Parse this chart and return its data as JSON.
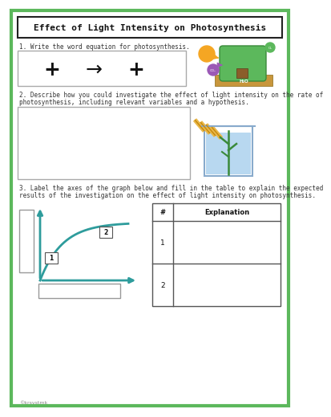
{
  "title": "Effect of Light Intensity on Photosynthesis",
  "q1_text": "1. Write the word equation for photosynthesis.",
  "q2_text_line1": "2. Describe how you could investigate the effect of light intensity on the rate of",
  "q2_text_line2": "photosynthesis, including relevant variables and a hypothesis.",
  "q3_text_line1": "3. Label the axes of the graph below and fill in the table to explain the expected",
  "q3_text_line2": "results of the investigation on the effect of light intensity on photosynthesis.",
  "copyright": "©krsvstmk",
  "border_color": "#5cb85c",
  "bg_color": "#ffffff",
  "line_color": "#2e9c9c",
  "font_color": "#333333",
  "table_header_col1": "#",
  "table_header_col2": "Explanation",
  "table_rows": [
    "1",
    "2"
  ]
}
